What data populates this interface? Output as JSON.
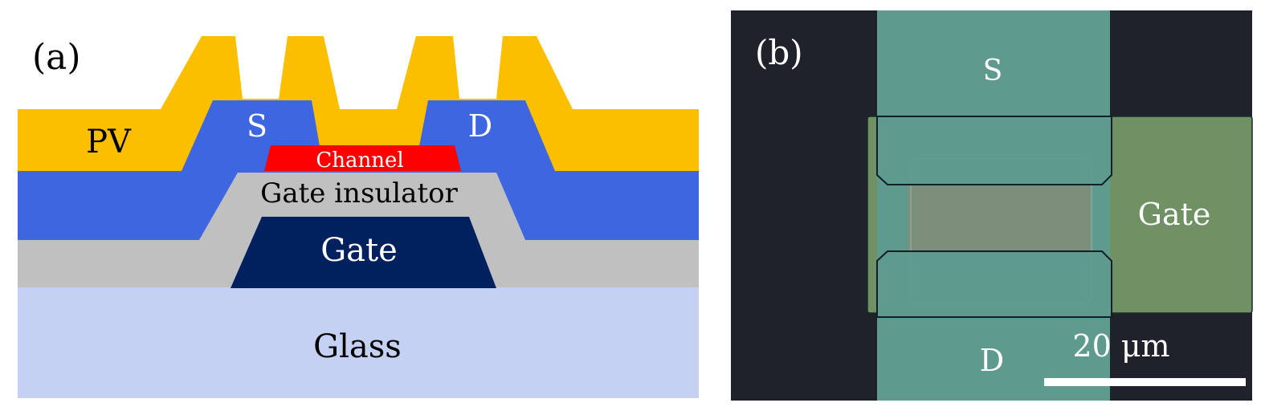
{
  "panel_a": {
    "label": "(a)",
    "layers": {
      "pv": "PV",
      "source": "S",
      "drain": "D",
      "channel": "Channel",
      "gate_insulator": "Gate insulator",
      "gate": "Gate",
      "glass": "Glass"
    },
    "colors": {
      "pv": "#fcbf00",
      "source_drain": "#3d66e0",
      "channel": "#ff0000",
      "gate_insulator": "#c0c0c0",
      "gate": "#00205e",
      "glass": "#c5d1f3"
    }
  },
  "panel_b": {
    "label": "(b)",
    "source": "S",
    "drain": "D",
    "gate": "Gate",
    "scale_bar": "20 μm",
    "colors": {
      "background": "#1f222b",
      "source_drain": "#5f9a8e",
      "gate": "#6f9164",
      "channel": "#7b8f7a"
    }
  }
}
